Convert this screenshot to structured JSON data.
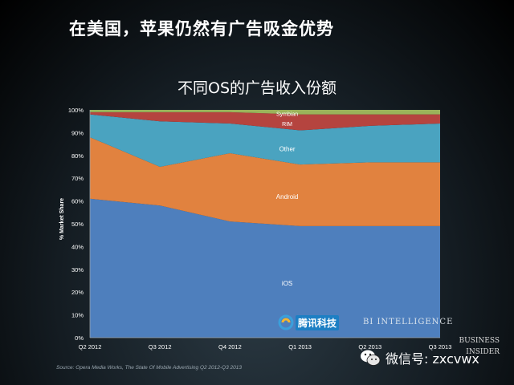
{
  "headline": "在美国，苹果仍然有广告吸金优势",
  "source": "Source: Opera Media Works, The State Of Mobile Advertising Q2 2012-Q3 2013",
  "brand": {
    "line1": "BUSINESS",
    "line2": "INSIDER"
  },
  "watermark": {
    "tencent": "腾讯科技",
    "bi": "BI INTELLIGENCE"
  },
  "wechat": {
    "label": "微信号: zxcvwx"
  },
  "colors": {
    "ios": "#4e7fbd",
    "android": "#e1823f",
    "other": "#4aa3c0",
    "rim": "#b5443f",
    "symbian": "#9ab35a"
  },
  "chart_data": {
    "type": "area",
    "stacked": true,
    "title": "不同OS的广告收入份额",
    "xlabel": "",
    "ylabel": "% Market Share",
    "x": [
      "Q2 2012",
      "Q3 2012",
      "Q4 2012",
      "Q1 2013",
      "Q2 2013",
      "Q3 2013"
    ],
    "ylim": [
      0,
      100
    ],
    "yticks": [
      "0%",
      "10%",
      "20%",
      "30%",
      "40%",
      "50%",
      "60%",
      "70%",
      "80%",
      "90%",
      "100%"
    ],
    "series": [
      {
        "name": "iOS",
        "values": [
          61,
          58,
          51,
          49,
          49,
          49
        ]
      },
      {
        "name": "Android",
        "values": [
          27,
          17,
          30,
          27,
          28,
          28
        ]
      },
      {
        "name": "Other",
        "values": [
          10,
          20,
          13,
          15,
          16,
          17
        ]
      },
      {
        "name": "RIM",
        "values": [
          1,
          4,
          5,
          7,
          5,
          4
        ]
      },
      {
        "name": "Symbian",
        "values": [
          1,
          1,
          1,
          2,
          2,
          2
        ]
      }
    ],
    "grid": false,
    "legend": "inline labels"
  }
}
